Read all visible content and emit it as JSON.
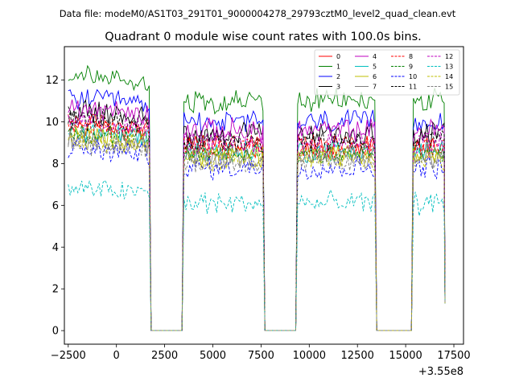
{
  "figure": {
    "suptitle": "Data file: modeM0/AS1T03_291T01_9000004278_29793cztM0_level2_quad_clean.evt"
  },
  "chart_data": {
    "type": "line",
    "title": "Quadrant 0 module wise count rates with 100.0s bins.",
    "xlabel": "",
    "ylabel": "",
    "x_offset_label": "+3.55e8",
    "xlim": [
      -2700,
      18000
    ],
    "ylim": [
      -0.65,
      13.6
    ],
    "x_ticks": [
      -2500,
      0,
      5000,
      7500,
      10000,
      12500,
      15000,
      17500
    ],
    "x_tick_labels": [
      "−2500",
      "0",
      "5000",
      "7500",
      "10000",
      "12500",
      "15000",
      "17500"
    ],
    "y_ticks": [
      0,
      2,
      4,
      6,
      8,
      10,
      12
    ],
    "y_tick_labels": [
      "0",
      "2",
      "4",
      "6",
      "8",
      "10",
      "12"
    ],
    "x_ticks_extra": [
      2500
    ],
    "x_tick_labels_extra": [
      "2500"
    ],
    "legend_position": "top-right",
    "on_segments": [
      [
        -2500,
        1700
      ],
      [
        3500,
        7600
      ],
      [
        9400,
        13400
      ],
      [
        15400,
        17000
      ]
    ],
    "gaps": [
      [
        1800,
        3400
      ],
      [
        7700,
        9300
      ],
      [
        13500,
        15300
      ]
    ],
    "series": [
      {
        "name": "0",
        "mean": 8.9,
        "color": "#ff0000",
        "dash": "solid"
      },
      {
        "name": "1",
        "mean": 11.0,
        "color": "#008000",
        "dash": "solid"
      },
      {
        "name": "2",
        "mean": 10.0,
        "color": "#0000ff",
        "dash": "solid"
      },
      {
        "name": "3",
        "mean": 9.4,
        "color": "#000000",
        "dash": "solid"
      },
      {
        "name": "4",
        "mean": 9.6,
        "color": "#bf00bf",
        "dash": "solid"
      },
      {
        "name": "5",
        "mean": 8.6,
        "color": "#00bfbf",
        "dash": "solid"
      },
      {
        "name": "6",
        "mean": 8.4,
        "color": "#bfbf00",
        "dash": "solid"
      },
      {
        "name": "7",
        "mean": 8.3,
        "color": "#808080",
        "dash": "solid"
      },
      {
        "name": "8",
        "mean": 8.8,
        "color": "#ff0000",
        "dash": "dashed"
      },
      {
        "name": "9",
        "mean": 8.5,
        "color": "#008000",
        "dash": "dashed"
      },
      {
        "name": "10",
        "mean": 7.8,
        "color": "#0000ff",
        "dash": "dashed"
      },
      {
        "name": "11",
        "mean": 9.1,
        "color": "#000000",
        "dash": "dashed"
      },
      {
        "name": "12",
        "mean": 9.0,
        "color": "#bf00bf",
        "dash": "dashed"
      },
      {
        "name": "13",
        "mean": 6.1,
        "color": "#00bfbf",
        "dash": "dashed"
      },
      {
        "name": "14",
        "mean": 8.2,
        "color": "#bfbf00",
        "dash": "dashed"
      },
      {
        "name": "15",
        "mean": 8.1,
        "color": "#808080",
        "dash": "dashed"
      }
    ]
  }
}
